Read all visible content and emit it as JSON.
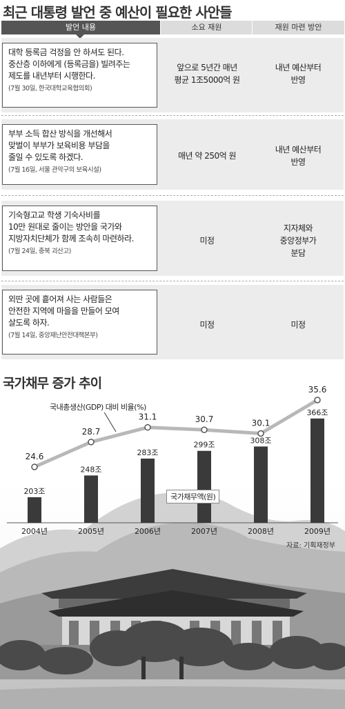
{
  "table": {
    "title": "최근 대통령 발언 중 예산이 필요한 사안들",
    "headers": [
      "발언 내용",
      "소요 재원",
      "재원 마련 방안"
    ],
    "rows": [
      {
        "quote": "대학 등록금 걱정을 안 하셔도 된다.\n중산층 이하에게 (등록금을) 빌려주는\n제도를 내년부터 시행한다.",
        "source": "(7월 30일, 한국대학교육협의회)",
        "cost": "앞으로 5년간 매년\n평균 1조5000억 원",
        "funding": "내년 예산부터\n반영"
      },
      {
        "quote": "부부 소득 합산 방식을 개선해서\n맞벌이 부부가 보육비용 부담을\n줄일 수 있도록 하겠다.",
        "source": "(7월 16일, 서울 관악구의 보육시설)",
        "cost": "매년 약 250억 원",
        "funding": "내년 예산부터\n반영"
      },
      {
        "quote": "기숙형고교 학생 기숙사비를\n10만 원대로 줄이는 방안을 국가와\n지방자치단체가 함께 조속히 마련하라.",
        "source": "(7월 24일, 충북 괴산고)",
        "cost": "미정",
        "funding": "지자체와\n중앙정부가\n분담"
      },
      {
        "quote": "외딴 곳에 흩어져 사는 사람들은\n안전한 지역에 마을을 만들어 모여\n살도록 하자.",
        "source": "(7월 14일, 중앙재난안전대책본부)",
        "cost": "미정",
        "funding": "미정"
      }
    ]
  },
  "chart_title": "국가채무 증가 추이",
  "chart_data": {
    "type": "bar",
    "categories": [
      "2004년",
      "2005년",
      "2006년",
      "2007년",
      "2008년",
      "2009년"
    ],
    "series": [
      {
        "name": "국가채무액(원)",
        "kind": "bar",
        "values": [
          203,
          248,
          283,
          299,
          308,
          366
        ],
        "labels": [
          "203조",
          "248조",
          "283조",
          "299조",
          "308조",
          "366조"
        ]
      },
      {
        "name": "국내총생산(GDP) 대비 비율(%)",
        "kind": "line",
        "values": [
          24.6,
          28.7,
          31.1,
          30.7,
          30.1,
          35.6
        ],
        "labels": [
          "24.6",
          "28.7",
          "31.1",
          "30.7",
          "30.1",
          "35.6"
        ]
      }
    ],
    "bar_label": "국가채무액(원)",
    "line_label": "국내총생산(GDP) 대비 비율(%)",
    "source": "자료: 기획재정부",
    "colors": {
      "bar": "#3a3a3a",
      "line": "#b8b8b8",
      "marker_fill": "#ffffff",
      "marker_stroke": "#555555"
    }
  }
}
